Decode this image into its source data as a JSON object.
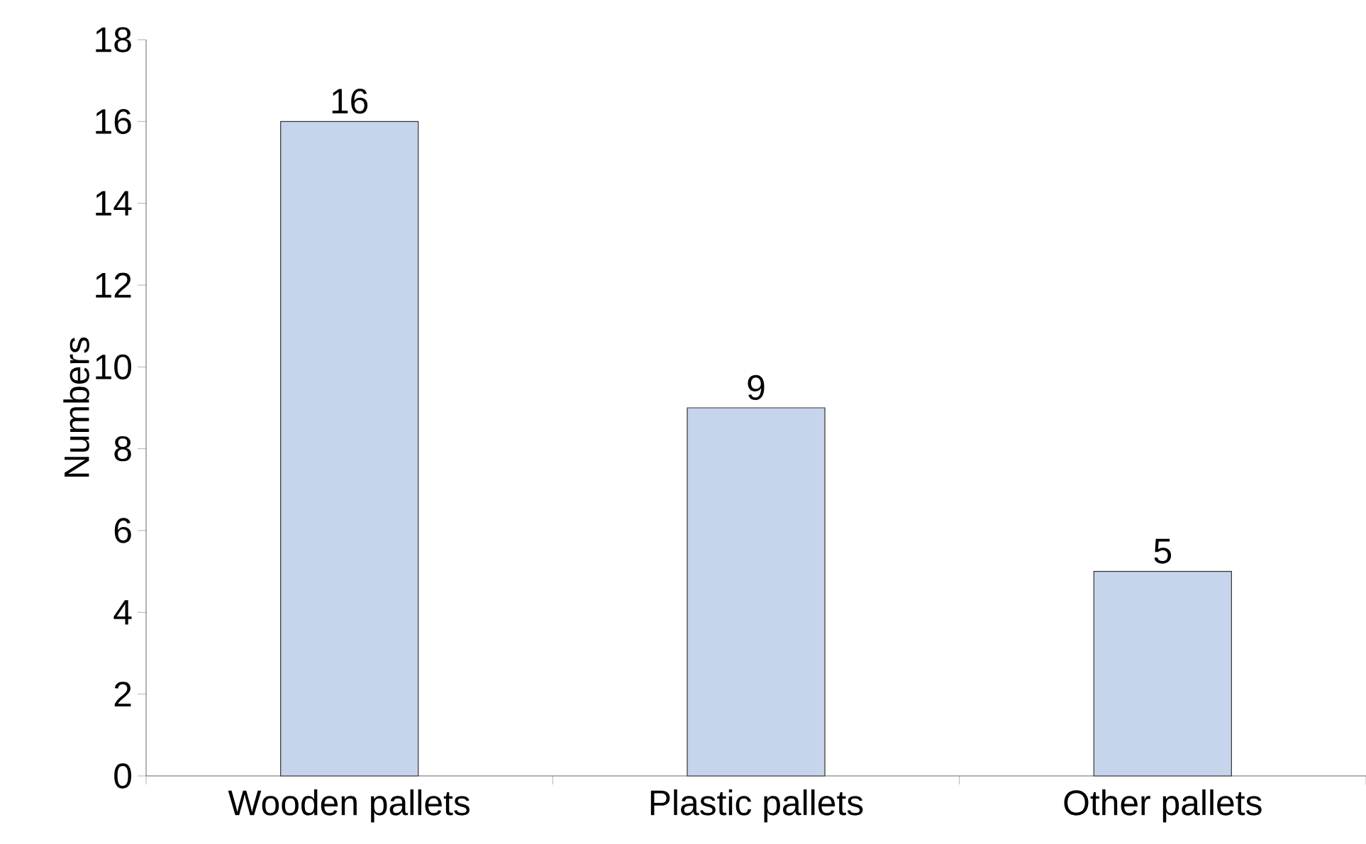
{
  "chart_data": {
    "type": "bar",
    "ylabel": "Numbers",
    "categories": [
      "Wooden pallets",
      "Plastic pallets",
      "Other pallets"
    ],
    "values": [
      16,
      9,
      5
    ],
    "color": "#c6d5eb",
    "ylim": [
      0,
      18
    ],
    "yticks": [
      0,
      2,
      4,
      6,
      8,
      10,
      12,
      14,
      16,
      18
    ],
    "data_labels": true,
    "grid": false
  }
}
